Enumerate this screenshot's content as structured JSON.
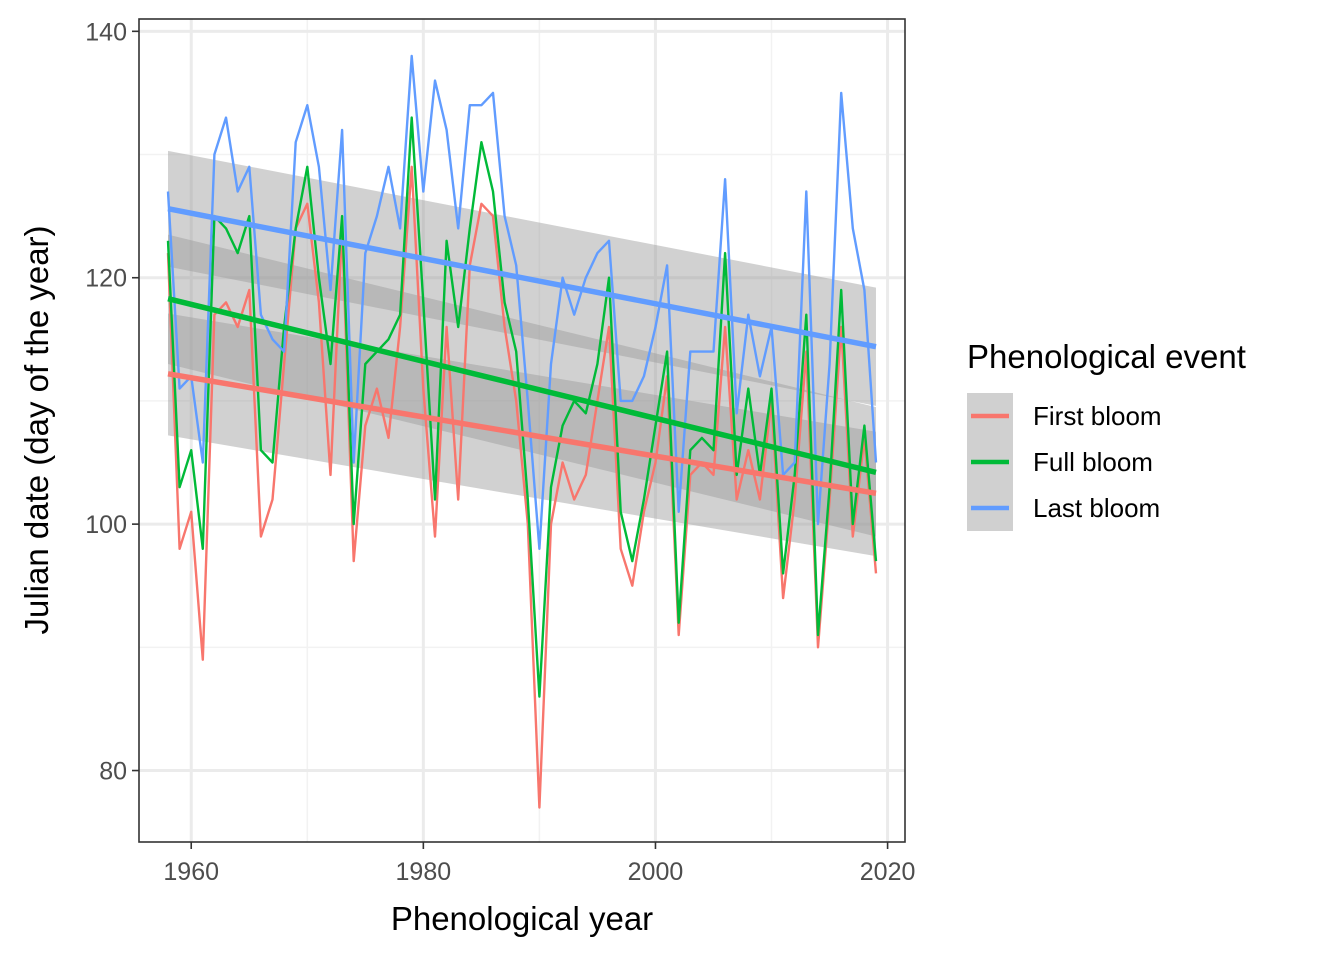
{
  "chart_data": {
    "type": "line",
    "xlabel": "Phenological year",
    "ylabel": "Julian date (day of the year)",
    "xlim": [
      1955.5,
      2021.5
    ],
    "ylim": [
      74.2,
      141.0
    ],
    "x_ticks": [
      1960,
      1980,
      2000,
      2020
    ],
    "y_ticks": [
      80,
      100,
      120,
      140
    ],
    "x_minor": [
      1970,
      1990,
      2010
    ],
    "y_minor": [
      90,
      110,
      130
    ],
    "grid": true,
    "legend": {
      "title": "Phenological event",
      "position": "right",
      "entries": [
        "First bloom",
        "Full bloom",
        "Last bloom"
      ]
    },
    "x": [
      1958,
      1959,
      1960,
      1961,
      1962,
      1963,
      1964,
      1965,
      1966,
      1967,
      1968,
      1969,
      1970,
      1971,
      1972,
      1973,
      1974,
      1975,
      1976,
      1977,
      1978,
      1979,
      1980,
      1981,
      1982,
      1983,
      1984,
      1985,
      1986,
      1987,
      1988,
      1989,
      1990,
      1991,
      1992,
      1993,
      1994,
      1995,
      1996,
      1997,
      1998,
      1999,
      2000,
      2001,
      2002,
      2003,
      2004,
      2005,
      2006,
      2007,
      2008,
      2009,
      2010,
      2011,
      2012,
      2013,
      2014,
      2015,
      2016,
      2017,
      2018,
      2019
    ],
    "series": [
      {
        "name": "First bloom",
        "color": "#F8766D",
        "values": [
          122,
          98,
          101,
          89,
          117,
          118,
          116,
          119,
          99,
          102,
          113,
          124,
          126,
          118,
          104,
          124,
          97,
          108,
          111,
          107,
          116,
          129,
          111,
          99,
          116,
          102,
          121,
          126,
          125,
          116,
          110,
          100,
          77,
          100,
          105,
          102,
          104,
          110,
          116,
          98,
          95,
          101,
          105,
          112,
          91,
          104,
          105,
          104,
          116,
          102,
          106,
          102,
          110,
          94,
          102,
          114,
          90,
          102,
          116,
          99,
          107,
          96
        ],
        "trend": {
          "start": 112.2,
          "end": 102.5
        },
        "ci": {
          "start": [
            107.2,
            117.1
          ],
          "end": [
            97.4,
            107.5
          ]
        }
      },
      {
        "name": "Full bloom",
        "color": "#00BA38",
        "values": [
          123,
          103,
          106,
          98,
          125,
          124,
          122,
          125,
          106,
          105,
          116,
          124,
          129,
          120,
          113,
          125,
          100,
          113,
          114,
          115,
          117,
          133,
          118,
          102,
          123,
          116,
          124,
          131,
          127,
          118,
          114,
          102,
          86,
          103,
          108,
          110,
          109,
          113,
          120,
          101,
          97,
          102,
          108,
          114,
          92,
          106,
          107,
          106,
          122,
          104,
          111,
          104,
          111,
          96,
          104,
          117,
          91,
          103,
          119,
          100,
          108,
          97
        ],
        "trend": {
          "start": 118.3,
          "end": 104.2
        },
        "ci": {
          "start": [
            113.0,
            123.5
          ],
          "end": [
            99.0,
            109.5
          ]
        }
      },
      {
        "name": "Last bloom",
        "color": "#619CFF",
        "values": [
          127,
          111,
          112,
          105,
          130,
          133,
          127,
          129,
          117,
          115,
          114,
          131,
          134,
          129,
          119,
          132,
          105,
          122,
          125,
          129,
          124,
          138,
          127,
          136,
          132,
          124,
          134,
          134,
          135,
          125,
          121,
          110,
          98,
          113,
          120,
          117,
          120,
          122,
          123,
          110,
          110,
          112,
          116,
          121,
          101,
          114,
          114,
          114,
          128,
          109,
          117,
          112,
          116,
          104,
          105,
          127,
          100,
          113,
          135,
          124,
          119,
          105
        ],
        "trend": {
          "start": 125.6,
          "end": 114.4
        },
        "ci": {
          "start": [
            120.9,
            130.3
          ],
          "end": [
            109.6,
            119.2
          ]
        }
      }
    ]
  },
  "colors": {
    "panel_border": "#333333",
    "grid_major": "#EBEBEB",
    "grid_minor": "#F2F2F2",
    "ribbon": "#999999"
  }
}
